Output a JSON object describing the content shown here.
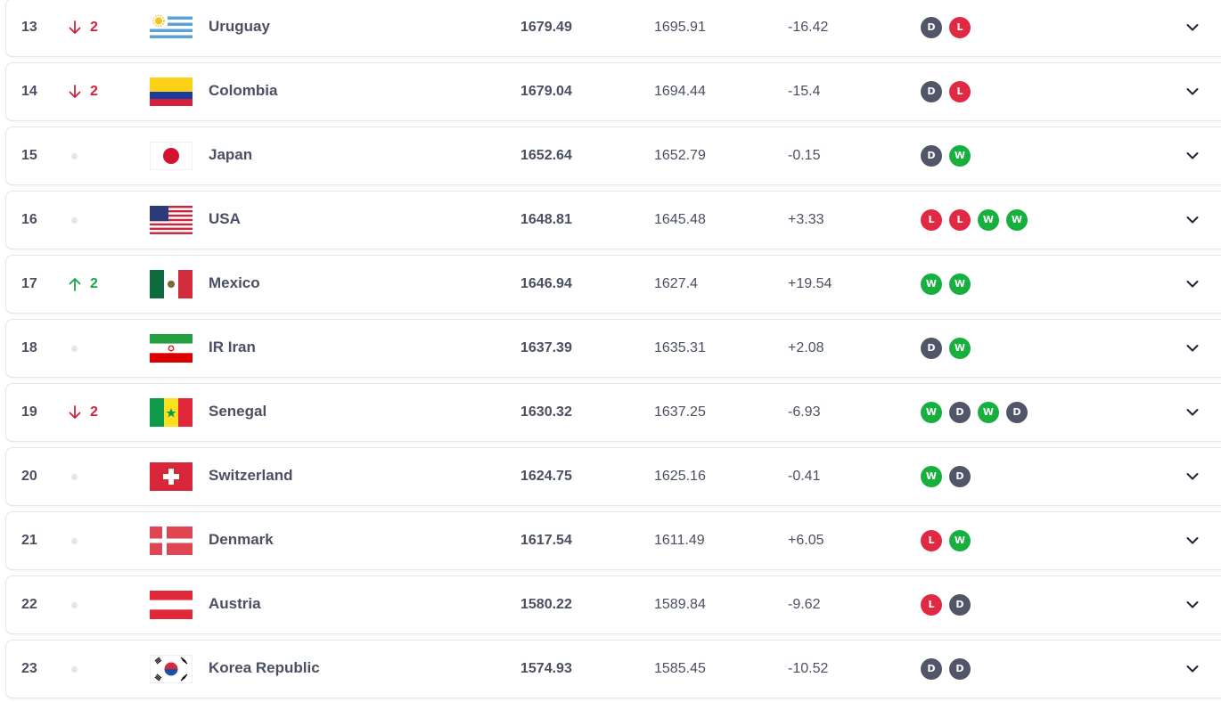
{
  "rows": [
    {
      "rank": "13",
      "move": "down",
      "moveValue": "2",
      "team": "Uruguay",
      "flag": "uruguay-flag",
      "points": "1679.49",
      "prevPoints": "1695.91",
      "change": "-16.42",
      "form": [
        "D",
        "L"
      ]
    },
    {
      "rank": "14",
      "move": "down",
      "moveValue": "2",
      "team": "Colombia",
      "flag": "colombia-flag",
      "points": "1679.04",
      "prevPoints": "1694.44",
      "change": "-15.4",
      "form": [
        "D",
        "L"
      ]
    },
    {
      "rank": "15",
      "move": "none",
      "moveValue": "",
      "team": "Japan",
      "flag": "japan-flag",
      "points": "1652.64",
      "prevPoints": "1652.79",
      "change": "-0.15",
      "form": [
        "D",
        "W"
      ]
    },
    {
      "rank": "16",
      "move": "none",
      "moveValue": "",
      "team": "USA",
      "flag": "usa-flag",
      "points": "1648.81",
      "prevPoints": "1645.48",
      "change": "+3.33",
      "form": [
        "L",
        "L",
        "W",
        "W"
      ]
    },
    {
      "rank": "17",
      "move": "up",
      "moveValue": "2",
      "team": "Mexico",
      "flag": "mexico-flag",
      "points": "1646.94",
      "prevPoints": "1627.4",
      "change": "+19.54",
      "form": [
        "W",
        "W"
      ]
    },
    {
      "rank": "18",
      "move": "none",
      "moveValue": "",
      "team": "IR Iran",
      "flag": "iran-flag",
      "points": "1637.39",
      "prevPoints": "1635.31",
      "change": "+2.08",
      "form": [
        "D",
        "W"
      ]
    },
    {
      "rank": "19",
      "move": "down",
      "moveValue": "2",
      "team": "Senegal",
      "flag": "senegal-flag",
      "points": "1630.32",
      "prevPoints": "1637.25",
      "change": "-6.93",
      "form": [
        "W",
        "D",
        "W",
        "D"
      ]
    },
    {
      "rank": "20",
      "move": "none",
      "moveValue": "",
      "team": "Switzerland",
      "flag": "switzerland-flag",
      "points": "1624.75",
      "prevPoints": "1625.16",
      "change": "-0.41",
      "form": [
        "W",
        "D"
      ]
    },
    {
      "rank": "21",
      "move": "none",
      "moveValue": "",
      "team": "Denmark",
      "flag": "denmark-flag",
      "points": "1617.54",
      "prevPoints": "1611.49",
      "change": "+6.05",
      "form": [
        "L",
        "W"
      ]
    },
    {
      "rank": "22",
      "move": "none",
      "moveValue": "",
      "team": "Austria",
      "flag": "austria-flag",
      "points": "1580.22",
      "prevPoints": "1589.84",
      "change": "-9.62",
      "form": [
        "L",
        "D"
      ]
    },
    {
      "rank": "23",
      "move": "none",
      "moveValue": "",
      "team": "Korea Republic",
      "flag": "korea-republic-flag",
      "points": "1574.93",
      "prevPoints": "1585.45",
      "change": "-10.52",
      "form": [
        "D",
        "D"
      ]
    }
  ],
  "colors": {
    "win": "#17b03f",
    "loss": "#e02a44",
    "draw": "#515568",
    "down": "#d5223a",
    "up": "#17a64a"
  },
  "icons": {
    "down": "arrow-down-icon",
    "up": "arrow-up-icon",
    "same": "no-change-dot-icon",
    "expand": "chevron-down-icon"
  }
}
